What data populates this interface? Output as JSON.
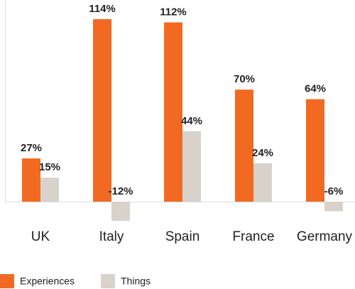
{
  "chart_data": {
    "type": "bar",
    "categories": [
      "UK",
      "Italy",
      "Spain",
      "France",
      "Germany"
    ],
    "series": [
      {
        "name": "Experiences",
        "color": "#f26a21",
        "values": [
          27,
          114,
          112,
          70,
          64
        ],
        "value_labels": [
          "27%",
          "114%",
          "112%",
          "70%",
          "64%"
        ]
      },
      {
        "name": "Things",
        "color": "#d8d2ca",
        "values": [
          15,
          -12,
          44,
          24,
          -6
        ],
        "value_labels": [
          "15%",
          "-12%",
          "44%",
          "24%",
          "-6%"
        ]
      }
    ]
  }
}
